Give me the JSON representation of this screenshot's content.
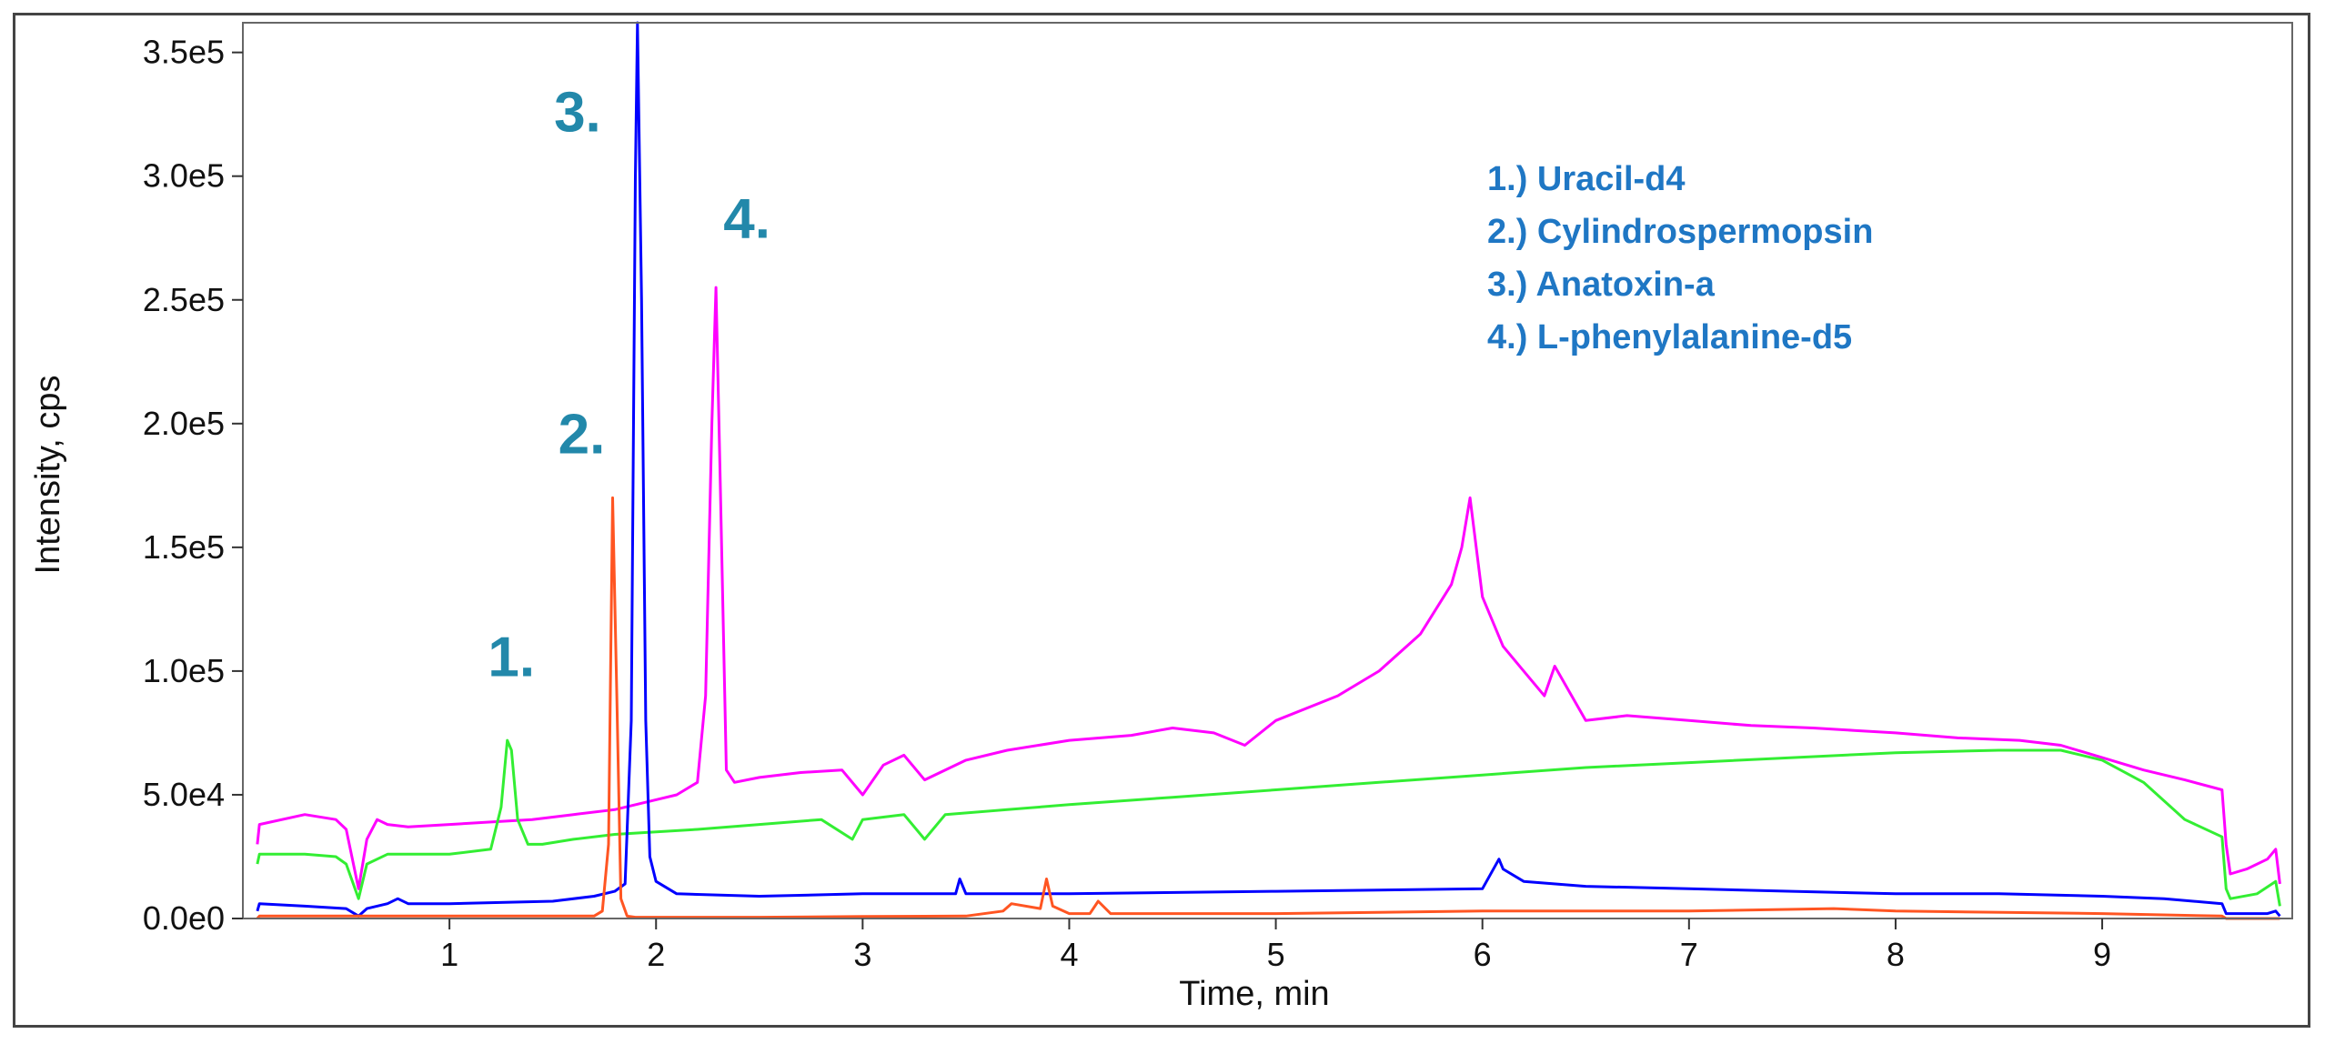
{
  "chart_data": {
    "type": "line",
    "title": "",
    "xlabel": "Time, min",
    "ylabel": "Intensity, cps",
    "xlim": [
      0.0,
      9.92
    ],
    "ylim": [
      0,
      362000
    ],
    "x_ticks": [
      1,
      2,
      3,
      4,
      5,
      6,
      7,
      8,
      9
    ],
    "x_tick_labels": [
      "1",
      "2",
      "3",
      "4",
      "5",
      "6",
      "7",
      "8",
      "9"
    ],
    "y_ticks": [
      0,
      50000,
      100000,
      150000,
      200000,
      250000,
      300000,
      350000
    ],
    "y_tick_labels": [
      "0.0e0",
      "5.0e4",
      "1.0e5",
      "1.5e5",
      "2.0e5",
      "2.5e5",
      "3.0e5",
      "3.5e5"
    ],
    "grid": false,
    "legend_position": "top-right",
    "legend": [
      "1.) Uracil-d4",
      "2.) Cylindrospermopsin",
      "3.) Anatoxin-a",
      "4.) L-phenylalanine-d5"
    ],
    "peak_annotations": [
      {
        "label": "1.",
        "x": 1.3,
        "y": 98000
      },
      {
        "label": "2.",
        "x": 1.64,
        "y": 188000
      },
      {
        "label": "3.",
        "x": 1.62,
        "y": 318000
      },
      {
        "label": "4.",
        "x": 2.44,
        "y": 275000
      }
    ],
    "series": [
      {
        "color": "#ff00ff",
        "x": [
          0.07,
          0.08,
          0.3,
          0.45,
          0.5,
          0.56,
          0.6,
          0.65,
          0.7,
          0.8,
          1.0,
          1.2,
          1.4,
          1.6,
          1.8,
          2.0,
          2.1,
          2.2,
          2.24,
          2.27,
          2.29,
          2.31,
          2.34,
          2.38,
          2.5,
          2.7,
          2.9,
          3.0,
          3.1,
          3.2,
          3.3,
          3.5,
          3.7,
          4.0,
          4.3,
          4.5,
          4.7,
          4.85,
          5.0,
          5.3,
          5.5,
          5.7,
          5.85,
          5.9,
          5.94,
          5.97,
          6.0,
          6.1,
          6.2,
          6.3,
          6.35,
          6.5,
          6.7,
          7.0,
          7.3,
          7.6,
          7.8,
          8.0,
          8.3,
          8.6,
          8.8,
          9.0,
          9.2,
          9.4,
          9.58,
          9.6,
          9.62,
          9.7,
          9.8,
          9.84,
          9.86
        ],
        "y": [
          30000,
          38000,
          42000,
          40000,
          36000,
          12000,
          32000,
          40000,
          38000,
          37000,
          38000,
          39000,
          40000,
          42000,
          44000,
          48000,
          50000,
          55000,
          90000,
          200000,
          255000,
          180000,
          60000,
          55000,
          57000,
          59000,
          60000,
          50000,
          62000,
          66000,
          56000,
          64000,
          68000,
          72000,
          74000,
          77000,
          75000,
          70000,
          80000,
          90000,
          100000,
          115000,
          135000,
          150000,
          170000,
          150000,
          130000,
          110000,
          100000,
          90000,
          102000,
          80000,
          82000,
          80000,
          78000,
          77000,
          76000,
          75000,
          73000,
          72000,
          70000,
          65000,
          60000,
          56000,
          52000,
          30000,
          18000,
          20000,
          24000,
          28000,
          14000
        ]
      },
      {
        "color": "#33ee33",
        "x": [
          0.07,
          0.08,
          0.3,
          0.45,
          0.5,
          0.56,
          0.6,
          0.7,
          1.0,
          1.2,
          1.25,
          1.28,
          1.3,
          1.33,
          1.38,
          1.45,
          1.6,
          1.8,
          2.0,
          2.2,
          2.5,
          2.8,
          2.95,
          3.0,
          3.2,
          3.3,
          3.4,
          3.7,
          4.0,
          4.5,
          5.0,
          5.5,
          6.0,
          6.5,
          7.0,
          7.5,
          8.0,
          8.5,
          8.8,
          9.0,
          9.2,
          9.4,
          9.58,
          9.6,
          9.62,
          9.75,
          9.84,
          9.86
        ],
        "y": [
          22000,
          26000,
          26000,
          25000,
          22000,
          8000,
          22000,
          26000,
          26000,
          28000,
          45000,
          72000,
          68000,
          40000,
          30000,
          30000,
          32000,
          34000,
          35000,
          36000,
          38000,
          40000,
          32000,
          40000,
          42000,
          32000,
          42000,
          44000,
          46000,
          49000,
          52000,
          55000,
          58000,
          61000,
          63000,
          65000,
          67000,
          68000,
          68000,
          64000,
          55000,
          40000,
          33000,
          12000,
          8000,
          10000,
          15000,
          5000
        ]
      },
      {
        "color": "#0000ff",
        "x": [
          0.07,
          0.08,
          0.3,
          0.5,
          0.56,
          0.6,
          0.7,
          0.75,
          0.8,
          1.0,
          1.5,
          1.7,
          1.8,
          1.85,
          1.88,
          1.9,
          1.91,
          1.93,
          1.95,
          1.97,
          2.0,
          2.1,
          2.5,
          3.0,
          3.45,
          3.47,
          3.5,
          4.0,
          5.0,
          6.0,
          6.08,
          6.1,
          6.2,
          6.5,
          7.0,
          7.5,
          8.0,
          8.5,
          9.0,
          9.3,
          9.58,
          9.6,
          9.8,
          9.84,
          9.86
        ],
        "y": [
          3000,
          6000,
          5000,
          4000,
          1000,
          4000,
          6000,
          8000,
          6000,
          6000,
          7000,
          9000,
          11000,
          14000,
          80000,
          300000,
          362000,
          250000,
          80000,
          25000,
          15000,
          10000,
          9000,
          10000,
          10000,
          16000,
          10000,
          10000,
          11000,
          12000,
          24000,
          20000,
          15000,
          13000,
          12000,
          11000,
          10000,
          10000,
          9000,
          8000,
          6000,
          2000,
          2000,
          3000,
          1000
        ]
      },
      {
        "color": "#ff5522",
        "x": [
          0.07,
          0.08,
          0.5,
          1.0,
          1.5,
          1.7,
          1.74,
          1.77,
          1.79,
          1.81,
          1.83,
          1.86,
          1.9,
          2.0,
          2.5,
          3.0,
          3.5,
          3.68,
          3.72,
          3.86,
          3.89,
          3.92,
          4.0,
          4.1,
          4.14,
          4.2,
          4.5,
          5.0,
          6.0,
          7.0,
          7.7,
          8.0,
          9.0,
          9.58,
          9.6,
          9.86
        ],
        "y": [
          0,
          1000,
          1000,
          1000,
          1000,
          1000,
          3000,
          30000,
          170000,
          90000,
          8000,
          1000,
          500,
          500,
          500,
          800,
          1000,
          3000,
          6000,
          4000,
          16000,
          5000,
          2000,
          2000,
          7000,
          2000,
          2000,
          2000,
          3000,
          3000,
          4000,
          3000,
          2000,
          1000,
          0,
          0
        ]
      }
    ]
  }
}
